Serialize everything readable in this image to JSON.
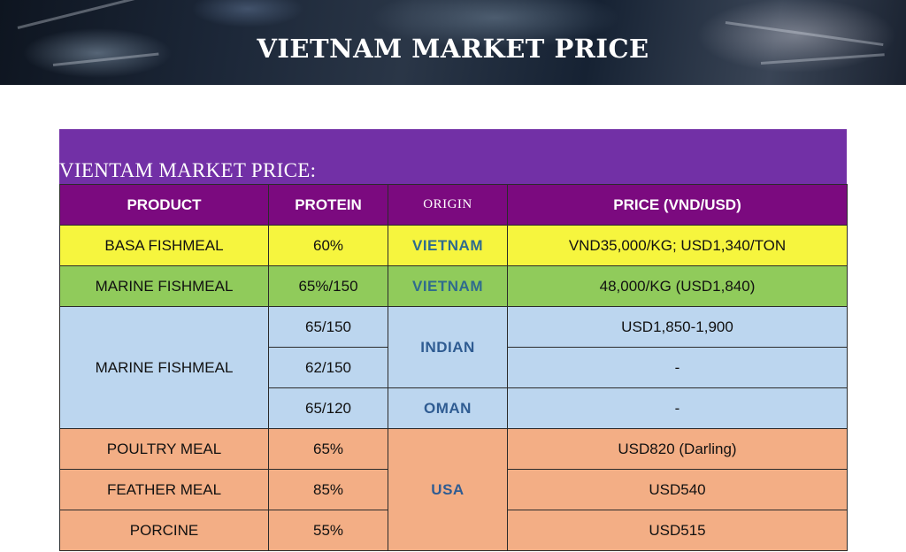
{
  "banner": {
    "title": "VIETNAM MARKET PRICE"
  },
  "table": {
    "caption": "VIENTAM MARKET PRICE:",
    "headers": {
      "product": "PRODUCT",
      "protein": "PROTEIN",
      "origin": "ORIGIN",
      "price": "PRICE (VND/USD)"
    },
    "rows": [
      {
        "product": "BASA FISHMEAL",
        "protein": "60%",
        "origin": "VIETNAM",
        "price": "VND35,000/KG; USD1,340/TON"
      },
      {
        "product": "MARINE FISHMEAL",
        "protein": "65%/150",
        "origin": "VIETNAM",
        "price": "48,000/KG (USD1,840)"
      },
      {
        "product": "MARINE FISHMEAL",
        "protein": "65/150",
        "origin": "INDIAN",
        "price": "USD1,850-1,900"
      },
      {
        "product": "",
        "protein": "62/150",
        "origin": "",
        "price": "-"
      },
      {
        "product": "",
        "protein": "65/120",
        "origin": "OMAN",
        "price": "-"
      },
      {
        "product": "POULTRY MEAL",
        "protein": "65%",
        "origin": "USA",
        "price": "USD820 (Darling)"
      },
      {
        "product": "FEATHER MEAL",
        "protein": "85%",
        "origin": "",
        "price": "USD540"
      },
      {
        "product": "PORCINE",
        "protein": "55%",
        "origin": "",
        "price": "USD515"
      }
    ]
  },
  "colors": {
    "header_purple": "#7230a6",
    "column_header": "#7b0a7f",
    "row_yellow": "#f6f53e",
    "row_green": "#90cb5b",
    "row_blue": "#bcd6ef",
    "row_orange": "#f3ae85"
  }
}
